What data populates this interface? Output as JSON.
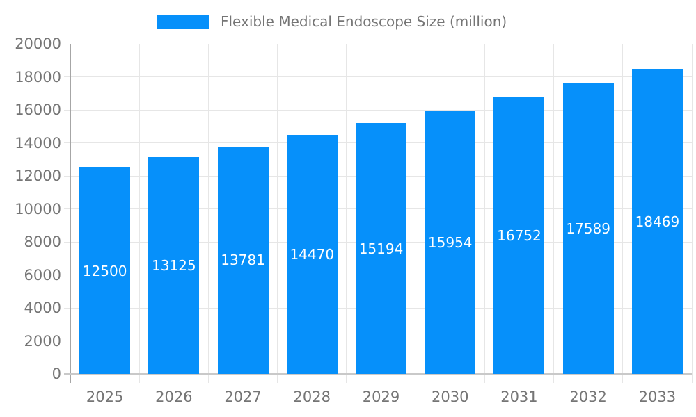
{
  "chart_data": {
    "type": "bar",
    "title": "Flexible Medical Endoscope Size (million)",
    "categories": [
      "2025",
      "2026",
      "2027",
      "2028",
      "2029",
      "2030",
      "2031",
      "2032",
      "2033"
    ],
    "series": [
      {
        "name": "Flexible Medical Endoscope Size (million)",
        "values": [
          12500,
          13125,
          13781,
          14470,
          15194,
          15954,
          16752,
          17589,
          18469
        ]
      }
    ],
    "xlabel": "",
    "ylabel": "",
    "ylim": [
      0,
      20000
    ],
    "yticks": [
      0,
      2000,
      4000,
      6000,
      8000,
      10000,
      12000,
      14000,
      16000,
      18000,
      20000
    ],
    "grid": true,
    "legend_position": "top-center",
    "bar_value_labels": true,
    "colors": {
      "bar": "#0690fa",
      "bar_label": "#ffffff",
      "axis_text": "#757575",
      "legend_text": "#757575",
      "gridline": "#e6e6e6",
      "y_axis_line": "#a6a6a6",
      "baseline": "#c9c9c9",
      "background": "#ffffff"
    }
  }
}
